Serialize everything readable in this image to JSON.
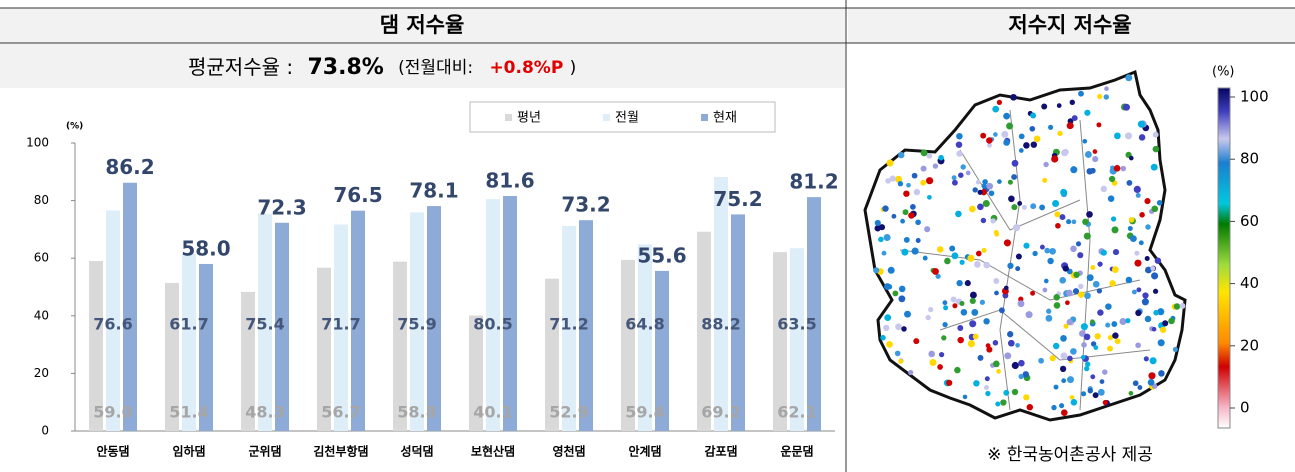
{
  "panels": {
    "left_title": "댐 저수율",
    "right_title": "저수지 저수율"
  },
  "summary": {
    "label": "평균저수율 :",
    "value": "73.8%",
    "compare_open": "(전월대비:",
    "compare_value": "+0.8%P",
    "compare_close": ")"
  },
  "chart_data": {
    "type": "bar",
    "y_unit": "(%)",
    "categories": [
      "안동댐",
      "임하댐",
      "군위댐",
      "김천부항댐",
      "성덕댐",
      "보현산댐",
      "영천댐",
      "안계댐",
      "감포댐",
      "운문댐"
    ],
    "series": [
      {
        "name": "평년",
        "color": "#d9d9d9",
        "values": [
          59.0,
          51.4,
          48.3,
          56.7,
          58.8,
          40.1,
          52.9,
          59.4,
          69.2,
          62.1
        ],
        "value_labels": [
          "59.0",
          "51.4",
          "48.3",
          "56.7",
          "58.8",
          "40.1",
          "52.9",
          "59.4",
          "69.2",
          "62.1"
        ]
      },
      {
        "name": "전월",
        "color": "#deeef9",
        "values": [
          76.6,
          61.7,
          75.4,
          71.7,
          75.9,
          80.5,
          71.2,
          64.8,
          88.2,
          63.5
        ],
        "value_labels": [
          "76.6",
          "61.7",
          "75.4",
          "71.7",
          "75.9",
          "80.5",
          "71.2",
          "64.8",
          "88.2",
          "63.5"
        ]
      },
      {
        "name": "현재",
        "color": "#8eabd8",
        "values": [
          86.2,
          58.0,
          72.3,
          76.5,
          78.1,
          81.6,
          73.2,
          55.6,
          75.2,
          81.2
        ],
        "value_labels": [
          "86.2",
          "58.0",
          "72.3",
          "76.5",
          "78.1",
          "81.6",
          "73.2",
          "55.6",
          "75.2",
          "81.2"
        ]
      }
    ],
    "ylim": [
      0,
      100
    ],
    "yticks": [
      0,
      20,
      40,
      60,
      80,
      100
    ],
    "grid": false
  },
  "map": {
    "colorbar_unit": "(%)",
    "colorbar_ticks": [
      0,
      20,
      40,
      60,
      80,
      100
    ],
    "credit": "※ 한국농어촌공사 제공"
  }
}
